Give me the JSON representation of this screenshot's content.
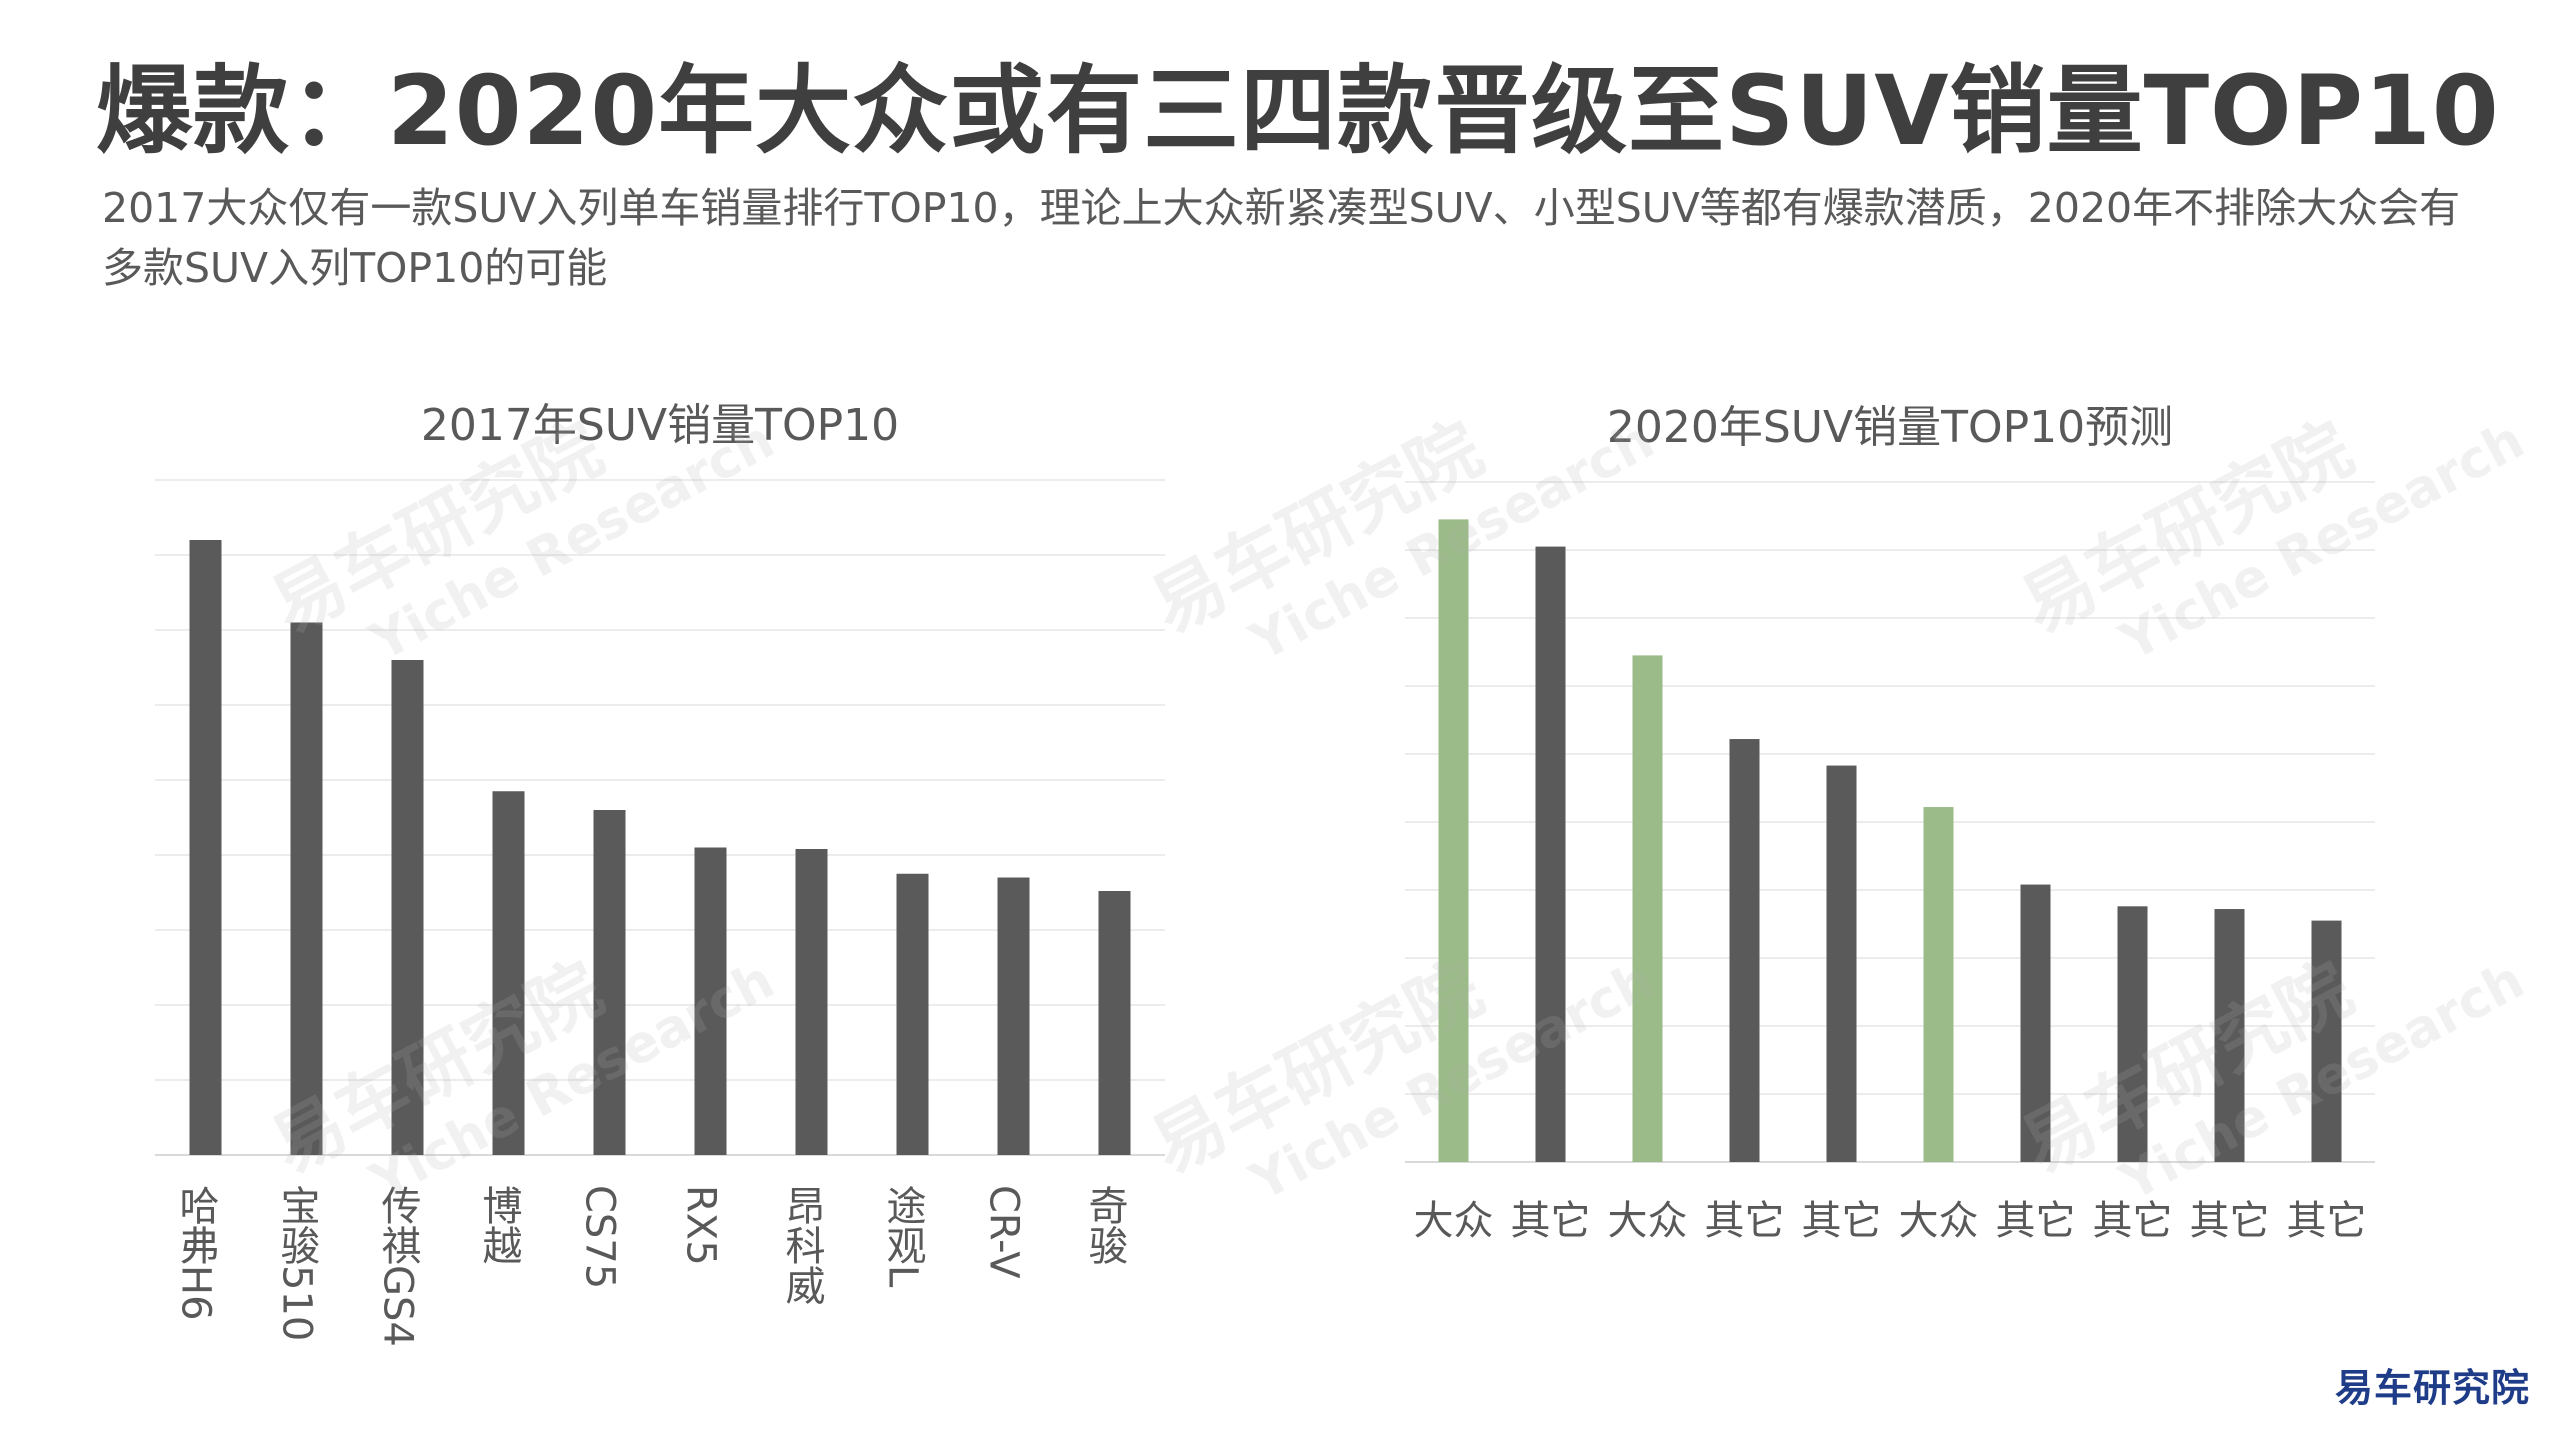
{
  "page": {
    "title": "爆款：2020年大众或有三四款晋级至SUV销量TOP10",
    "subtitle": "2017大众仅有一款SUV入列单车销量排行TOP10，理论上大众新紧凑型SUV、小型SUV等都有爆款潜质，2020年不排除大众会有多款SUV入列TOP10的可能",
    "watermark_cn": "易车研究院",
    "watermark_en": "Yiche Research",
    "brand": "易车研究院"
  },
  "colors": {
    "gray_bar": "#5a5a5a",
    "green_bar": "#9bbb88",
    "gridline": "#e6e6e6",
    "axis": "#d9d9d9",
    "label_text": "#595959",
    "brand": "#1f3c88"
  },
  "chart_data": [
    {
      "type": "bar",
      "title": "2017年SUV销量TOP10",
      "categories": [
        "哈弗H6",
        "宝骏510",
        "传祺GS4",
        "博越",
        "CS75",
        "RX5",
        "昂科威",
        "途观L",
        "CR-V",
        "奇骏"
      ],
      "values": [
        8.2,
        7.1,
        6.6,
        4.85,
        4.6,
        4.1,
        4.08,
        3.75,
        3.7,
        3.52
      ],
      "ylim": [
        0,
        9
      ],
      "grid": true,
      "legend": "none",
      "category_label_orientation": "vertical"
    },
    {
      "type": "bar",
      "title": "2020年SUV销量TOP10预测",
      "categories": [
        "大众",
        "其它",
        "大众",
        "其它",
        "其它",
        "大众",
        "其它",
        "其它",
        "其它",
        "其它"
      ],
      "values": [
        9.45,
        9.05,
        7.45,
        6.22,
        5.83,
        5.22,
        4.08,
        3.76,
        3.72,
        3.55
      ],
      "highlight": [
        true,
        false,
        true,
        false,
        false,
        true,
        false,
        false,
        false,
        false
      ],
      "ylim": [
        0,
        10
      ],
      "grid": true,
      "legend": "none",
      "category_label_orientation": "horizontal"
    }
  ]
}
